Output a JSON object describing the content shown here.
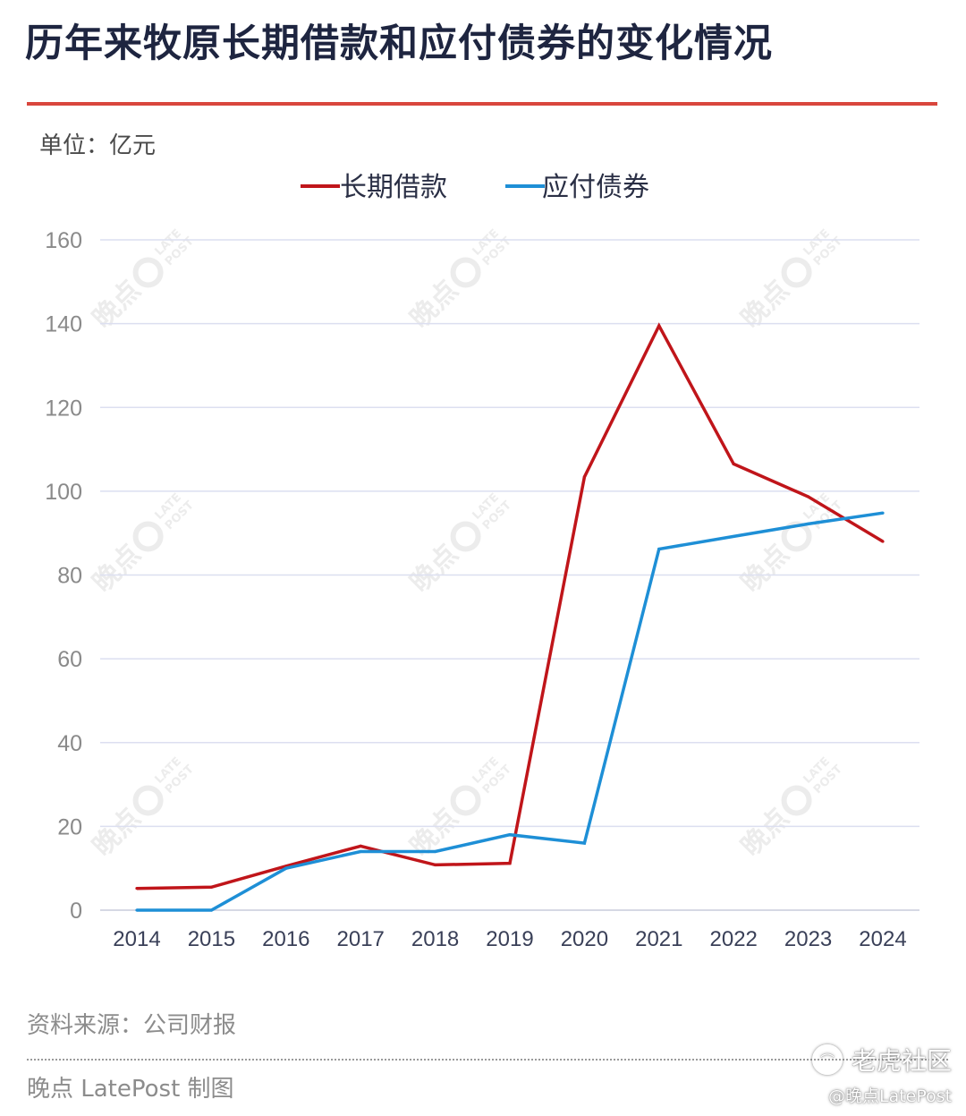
{
  "title": "历年来牧原长期借款和应付债券的变化情况",
  "unit_label": "单位：亿元",
  "source": "资料来源：公司财报",
  "credit": "晚点 LatePost 制图",
  "watermark": {
    "brand_cn": "晚点",
    "brand_en_top": "LATE",
    "brand_en_bottom": "POST",
    "community": "老虎社区",
    "handle": "@晚点LatePost"
  },
  "colors": {
    "title_rule": "#d9463d",
    "long_term_loans": "#c0151a",
    "bonds_payable": "#1e8fd6",
    "grid": "#dcdff0",
    "tick_text": "#8a8a8a"
  },
  "chart_data": {
    "type": "line",
    "x": [
      "2014",
      "2015",
      "2016",
      "2017",
      "2018",
      "2019",
      "2020",
      "2021",
      "2022",
      "2023",
      "2024"
    ],
    "series": [
      {
        "name": "长期借款",
        "color": "#c0151a",
        "values": [
          5.2,
          5.5,
          10.5,
          15.3,
          10.8,
          11.2,
          103.4,
          139.5,
          106.5,
          98.7,
          88.0
        ]
      },
      {
        "name": "应付债券",
        "color": "#1e8fd6",
        "values": [
          0,
          0,
          10.0,
          14.0,
          14.0,
          18.0,
          16.0,
          86.2,
          89.2,
          92.2,
          94.8
        ]
      }
    ],
    "ylim": [
      0,
      160
    ],
    "yticks": [
      0,
      20,
      40,
      60,
      80,
      100,
      120,
      140,
      160
    ],
    "xlabel": "",
    "ylabel": "",
    "grid": true,
    "legend_position": "top-center"
  }
}
